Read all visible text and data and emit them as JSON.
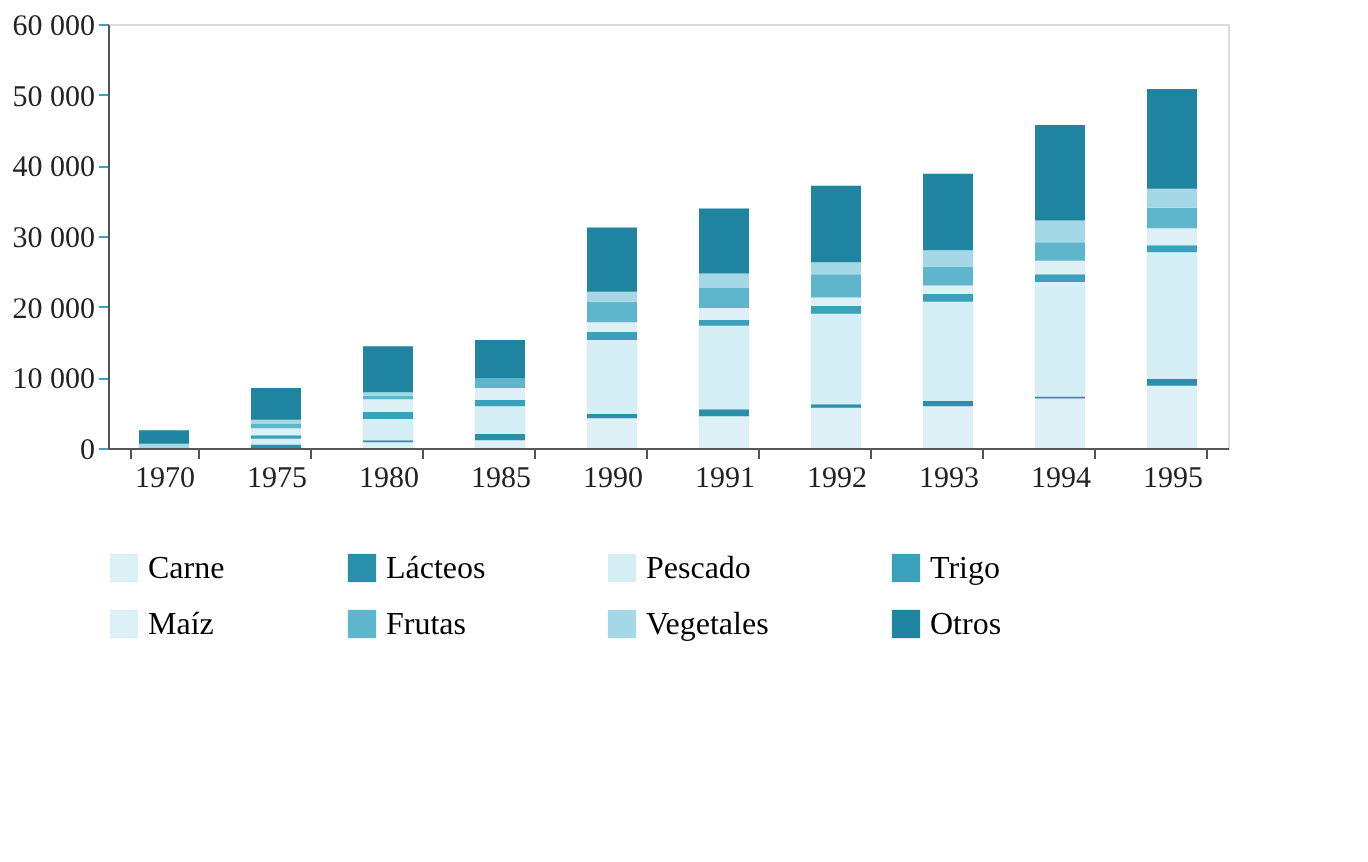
{
  "chart_data": {
    "type": "bar",
    "stacked": true,
    "categories": [
      "1970",
      "1975",
      "1980",
      "1985",
      "1990",
      "1991",
      "1992",
      "1993",
      "1994",
      "1995"
    ],
    "series": [
      {
        "name": "Carne",
        "color": "#dcf0f5",
        "values": [
          0,
          0,
          800,
          1100,
          4200,
          4500,
          5700,
          5900,
          7000,
          8800
        ]
      },
      {
        "name": "Lácteos",
        "color": "#2a8fab",
        "values": [
          0,
          500,
          300,
          900,
          600,
          1000,
          500,
          800,
          300,
          1000
        ]
      },
      {
        "name": "Pescado",
        "color": "#d4eff6",
        "values": [
          0,
          800,
          3000,
          3900,
          10500,
          11800,
          12800,
          14000,
          16200,
          17900
        ]
      },
      {
        "name": "Trigo",
        "color": "#3aa0bc",
        "values": [
          0,
          500,
          1000,
          900,
          1100,
          800,
          1100,
          1100,
          1100,
          1000
        ]
      },
      {
        "name": "Maíz",
        "color": "#dcf0f5",
        "values": [
          0,
          1000,
          1800,
          1700,
          1400,
          1700,
          1200,
          1200,
          1900,
          2400
        ]
      },
      {
        "name": "Frutas",
        "color": "#5fb5cc",
        "values": [
          0,
          600,
          500,
          1400,
          2900,
          2900,
          3300,
          2600,
          2600,
          2900
        ]
      },
      {
        "name": "Vegetales",
        "color": "#a5d8e6",
        "values": [
          600,
          600,
          500,
          0,
          1400,
          2000,
          1700,
          2400,
          3100,
          2700
        ]
      },
      {
        "name": "Otros",
        "color": "#1f84a0",
        "values": [
          1900,
          4500,
          6500,
          5400,
          9100,
          9200,
          10800,
          10800,
          13500,
          14100
        ]
      }
    ],
    "ylim": [
      0,
      60000
    ],
    "yticks": [
      0,
      {
        "value": 10000,
        "label": "10 000"
      },
      {
        "value": 20000,
        "label": "20 000"
      },
      {
        "value": 30000,
        "label": "30 000"
      },
      {
        "value": 40000,
        "label": "40 000"
      },
      {
        "value": 50000,
        "label": "50 000"
      },
      {
        "value": 60000,
        "label": "60 000"
      }
    ],
    "grid": false,
    "legend": "bottom"
  }
}
